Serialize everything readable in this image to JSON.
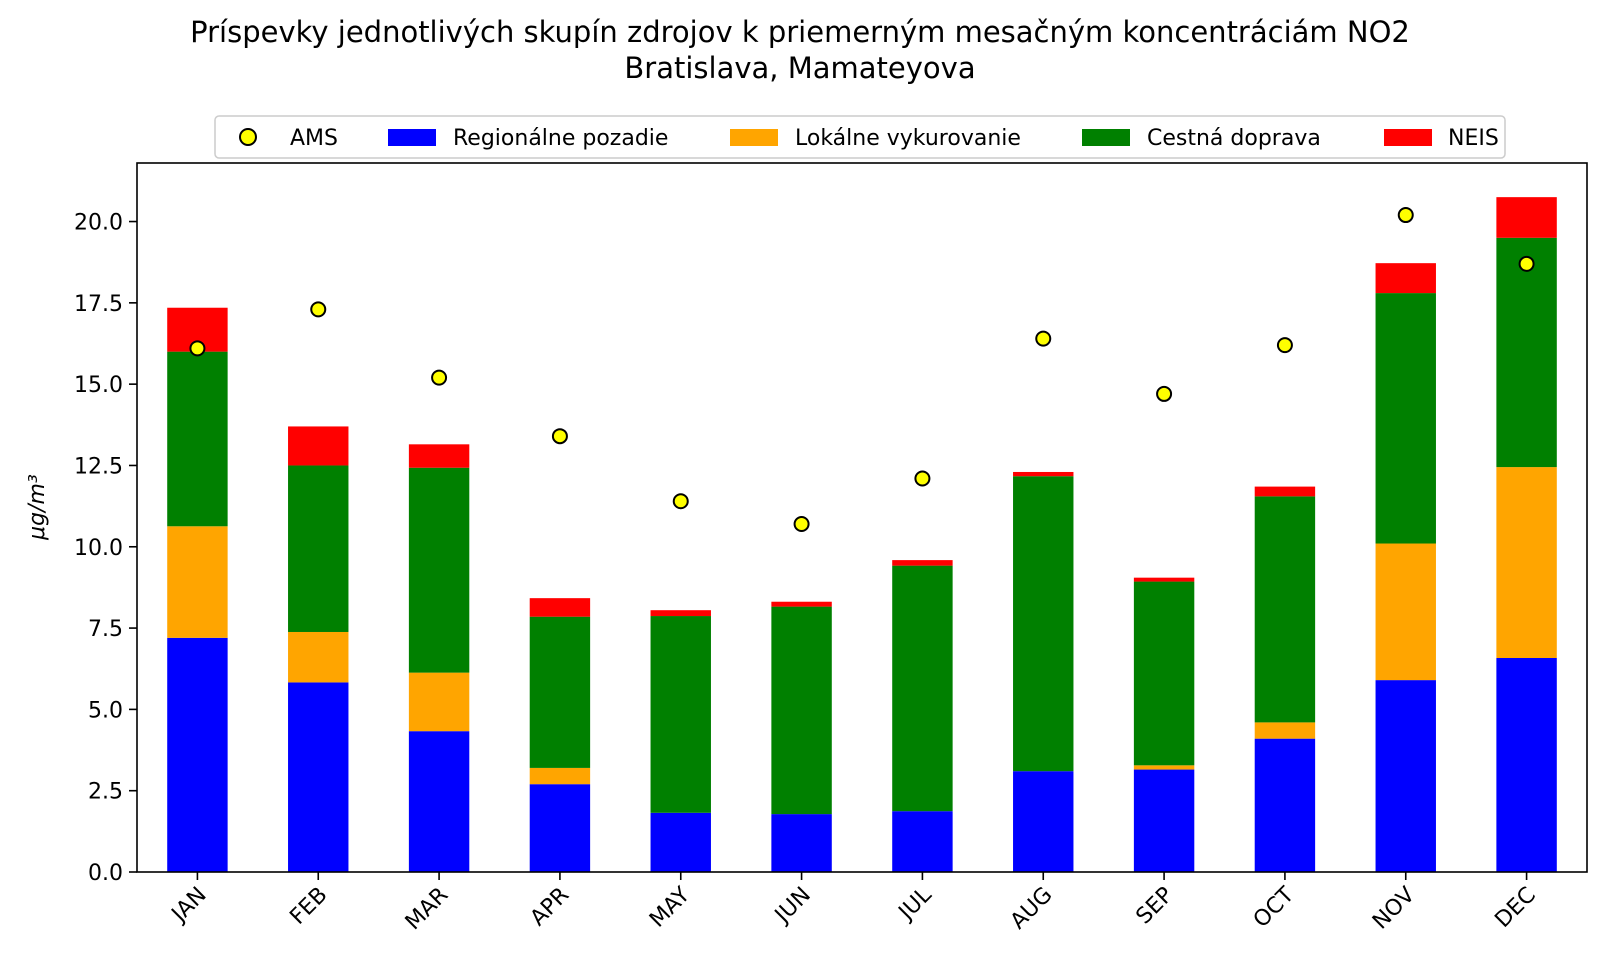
{
  "chart_data": {
    "type": "bar",
    "stacked": true,
    "title": "Príspevky jednotlivých skupín zdrojov k priemerným mesačným koncentráciám NO2",
    "subtitle": "Bratislava, Mamateyova",
    "xlabel": "",
    "ylabel": "μg/m³",
    "ylim": [
      0,
      21.8
    ],
    "yticks": [
      "0.0",
      "2.5",
      "5.0",
      "7.5",
      "10.0",
      "12.5",
      "15.0",
      "17.5",
      "20.0"
    ],
    "ytick_values": [
      0,
      2.5,
      5,
      7.5,
      10,
      12.5,
      15,
      17.5,
      20
    ],
    "categories": [
      "JAN",
      "FEB",
      "MAR",
      "APR",
      "MAY",
      "JUN",
      "JUL",
      "AUG",
      "SEP",
      "OCT",
      "NOV",
      "DEC"
    ],
    "legend": [
      "AMS",
      "Regionálne pozadie",
      "Lokálne vykurovanie",
      "Cestná doprava",
      "NEIS"
    ],
    "legend_position": "top-center",
    "series": [
      {
        "name": "Regionálne pozadie",
        "color": "#0000ff",
        "values": [
          7.2,
          5.83,
          4.33,
          2.7,
          1.82,
          1.78,
          1.87,
          3.1,
          3.15,
          4.1,
          5.9,
          6.58
        ]
      },
      {
        "name": "Lokálne vykurovanie",
        "color": "#ffa500",
        "values": [
          3.43,
          1.55,
          1.8,
          0.5,
          0.0,
          0.0,
          0.0,
          0.0,
          0.13,
          0.5,
          4.2,
          5.87
        ]
      },
      {
        "name": "Cestná doprava",
        "color": "#008000",
        "values": [
          5.37,
          5.12,
          6.3,
          4.65,
          6.05,
          6.38,
          7.55,
          9.07,
          5.65,
          6.95,
          7.7,
          7.05
        ]
      },
      {
        "name": "NEIS",
        "color": "#ff0000",
        "values": [
          1.35,
          1.2,
          0.72,
          0.57,
          0.18,
          0.15,
          0.17,
          0.13,
          0.12,
          0.3,
          0.92,
          1.25
        ]
      }
    ],
    "markers": {
      "name": "AMS",
      "color": "#ffff00",
      "values": [
        16.1,
        17.3,
        15.2,
        13.4,
        11.4,
        10.7,
        12.1,
        16.4,
        14.7,
        16.2,
        20.2,
        18.7
      ]
    }
  }
}
